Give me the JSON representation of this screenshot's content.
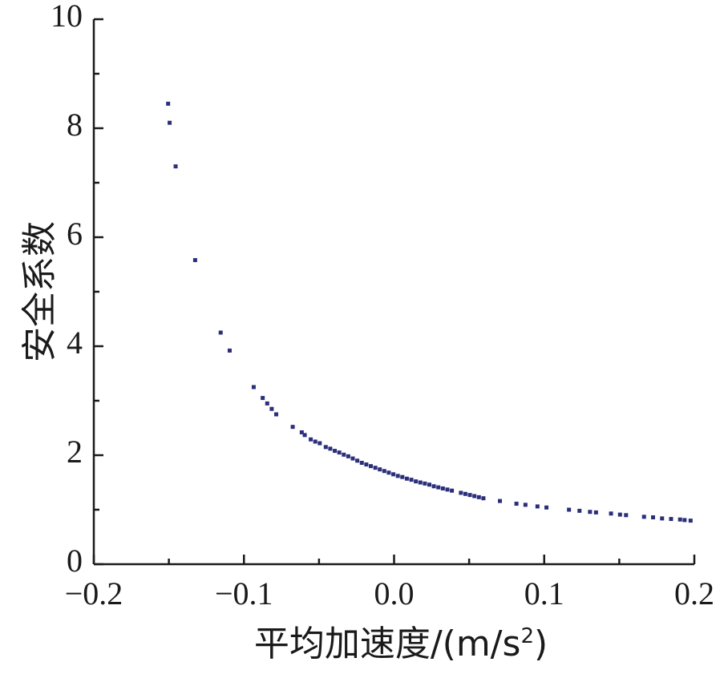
{
  "chart_data": {
    "type": "scatter",
    "title": "",
    "xlabel_main": "平均加速度/(m/s",
    "xlabel_sup": "2",
    "xlabel_end": ")",
    "ylabel": "安全系数",
    "xlim": [
      -0.2,
      0.2
    ],
    "ylim": [
      0,
      10
    ],
    "x_ticks": [
      -0.2,
      -0.1,
      0.0,
      0.1,
      0.2
    ],
    "x_tick_labels": [
      "−0.2",
      "−0.1",
      "0.0",
      "0.1",
      "0.2"
    ],
    "y_ticks": [
      0,
      2,
      4,
      6,
      8,
      10
    ],
    "y_tick_labels": [
      "0",
      "2",
      "4",
      "6",
      "8",
      "10"
    ],
    "grid": false,
    "legend": "none",
    "marker_color": "#2b2f7a",
    "points": [
      {
        "x": -0.1505,
        "y": 8.45
      },
      {
        "x": -0.1495,
        "y": 8.1
      },
      {
        "x": -0.1455,
        "y": 7.3
      },
      {
        "x": -0.1325,
        "y": 5.58
      },
      {
        "x": -0.1155,
        "y": 4.25
      },
      {
        "x": -0.1095,
        "y": 3.92
      },
      {
        "x": -0.0935,
        "y": 3.25
      },
      {
        "x": -0.0875,
        "y": 3.05
      },
      {
        "x": -0.0845,
        "y": 2.95
      },
      {
        "x": -0.0815,
        "y": 2.85
      },
      {
        "x": -0.0785,
        "y": 2.75
      },
      {
        "x": -0.0675,
        "y": 2.52
      },
      {
        "x": -0.0615,
        "y": 2.42
      },
      {
        "x": -0.0595,
        "y": 2.37
      },
      {
        "x": -0.0555,
        "y": 2.29
      },
      {
        "x": -0.0525,
        "y": 2.25
      },
      {
        "x": -0.0495,
        "y": 2.22
      },
      {
        "x": -0.0455,
        "y": 2.15
      },
      {
        "x": -0.0425,
        "y": 2.12
      },
      {
        "x": -0.0395,
        "y": 2.08
      },
      {
        "x": -0.0365,
        "y": 2.05
      },
      {
        "x": -0.0335,
        "y": 2.01
      },
      {
        "x": -0.0305,
        "y": 1.98
      },
      {
        "x": -0.0275,
        "y": 1.94
      },
      {
        "x": -0.0245,
        "y": 1.9
      },
      {
        "x": -0.0215,
        "y": 1.86
      },
      {
        "x": -0.0185,
        "y": 1.83
      },
      {
        "x": -0.0155,
        "y": 1.8
      },
      {
        "x": -0.0125,
        "y": 1.77
      },
      {
        "x": -0.0095,
        "y": 1.74
      },
      {
        "x": -0.0065,
        "y": 1.71
      },
      {
        "x": -0.0035,
        "y": 1.68
      },
      {
        "x": -0.0005,
        "y": 1.65
      },
      {
        "x": 0.0025,
        "y": 1.62
      },
      {
        "x": 0.0055,
        "y": 1.6
      },
      {
        "x": 0.0085,
        "y": 1.57
      },
      {
        "x": 0.0115,
        "y": 1.55
      },
      {
        "x": 0.0145,
        "y": 1.52
      },
      {
        "x": 0.0175,
        "y": 1.5
      },
      {
        "x": 0.0205,
        "y": 1.48
      },
      {
        "x": 0.0235,
        "y": 1.46
      },
      {
        "x": 0.0265,
        "y": 1.43
      },
      {
        "x": 0.0295,
        "y": 1.41
      },
      {
        "x": 0.0325,
        "y": 1.39
      },
      {
        "x": 0.0355,
        "y": 1.37
      },
      {
        "x": 0.0385,
        "y": 1.35
      },
      {
        "x": 0.0445,
        "y": 1.31
      },
      {
        "x": 0.0475,
        "y": 1.29
      },
      {
        "x": 0.0505,
        "y": 1.27
      },
      {
        "x": 0.0535,
        "y": 1.25
      },
      {
        "x": 0.0565,
        "y": 1.23
      },
      {
        "x": 0.0595,
        "y": 1.21
      },
      {
        "x": 0.0705,
        "y": 1.16
      },
      {
        "x": 0.0815,
        "y": 1.11
      },
      {
        "x": 0.0875,
        "y": 1.09
      },
      {
        "x": 0.0955,
        "y": 1.06
      },
      {
        "x": 0.1015,
        "y": 1.04
      },
      {
        "x": 0.1165,
        "y": 1.0
      },
      {
        "x": 0.1235,
        "y": 0.98
      },
      {
        "x": 0.1305,
        "y": 0.96
      },
      {
        "x": 0.1345,
        "y": 0.95
      },
      {
        "x": 0.1445,
        "y": 0.93
      },
      {
        "x": 0.1505,
        "y": 0.91
      },
      {
        "x": 0.1545,
        "y": 0.9
      },
      {
        "x": 0.1665,
        "y": 0.87
      },
      {
        "x": 0.1725,
        "y": 0.86
      },
      {
        "x": 0.1785,
        "y": 0.84
      },
      {
        "x": 0.1845,
        "y": 0.83
      },
      {
        "x": 0.1905,
        "y": 0.82
      },
      {
        "x": 0.1935,
        "y": 0.81
      },
      {
        "x": 0.1975,
        "y": 0.8
      }
    ]
  }
}
